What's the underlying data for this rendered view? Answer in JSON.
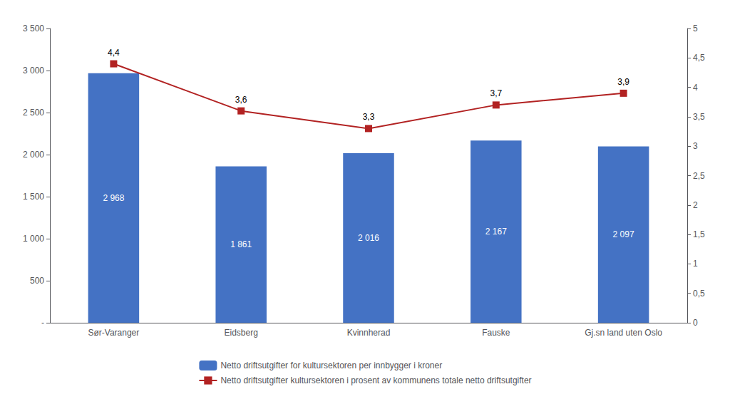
{
  "chart_data": {
    "type": "bar",
    "categories": [
      "Sør-Varanger",
      "Eidsberg",
      "Kvinnherad",
      "Fauske",
      "Gj.sn land uten Oslo"
    ],
    "series": [
      {
        "name": "Netto driftsutgifter for kultursektoren per innbygger i kroner",
        "type": "bar",
        "color": "#4472C4",
        "values": [
          2968,
          1861,
          2016,
          2167,
          2097
        ],
        "value_labels": [
          "2 968",
          "1 861",
          "2 016",
          "2 167",
          "2 097"
        ]
      },
      {
        "name": "Netto driftsutgifter kultursektoren i prosent av kommunens totale netto driftsutgifter",
        "type": "line",
        "axis": "y2",
        "color": "#B22222",
        "marker": "square",
        "values": [
          4.4,
          3.6,
          3.3,
          3.7,
          3.9
        ],
        "value_labels": [
          "4,4",
          "3,6",
          "3,3",
          "3,7",
          "3,9"
        ]
      }
    ],
    "ylim": [
      0,
      3500
    ],
    "yticks": [
      {
        "value": 0,
        "label": "-"
      },
      500,
      {
        "value": 1000,
        "label": "1 000"
      },
      {
        "value": 1500,
        "label": "1 500"
      },
      {
        "value": 2000,
        "label": "2 000"
      },
      {
        "value": 2500,
        "label": "2 500"
      },
      {
        "value": 3000,
        "label": "3 000"
      },
      {
        "value": 3500,
        "label": "3 500"
      }
    ],
    "y2lim": [
      0,
      5
    ],
    "y2ticks": [
      0,
      {
        "value": 0.5,
        "label": "0,5"
      },
      1,
      {
        "value": 1.5,
        "label": "1,5"
      },
      2,
      {
        "value": 2.5,
        "label": "2,5"
      },
      3,
      {
        "value": 3.5,
        "label": "3,5"
      },
      4,
      {
        "value": 4.5,
        "label": "4,5"
      },
      5
    ],
    "data_labels": true,
    "grid": false,
    "legend": "bottom"
  }
}
